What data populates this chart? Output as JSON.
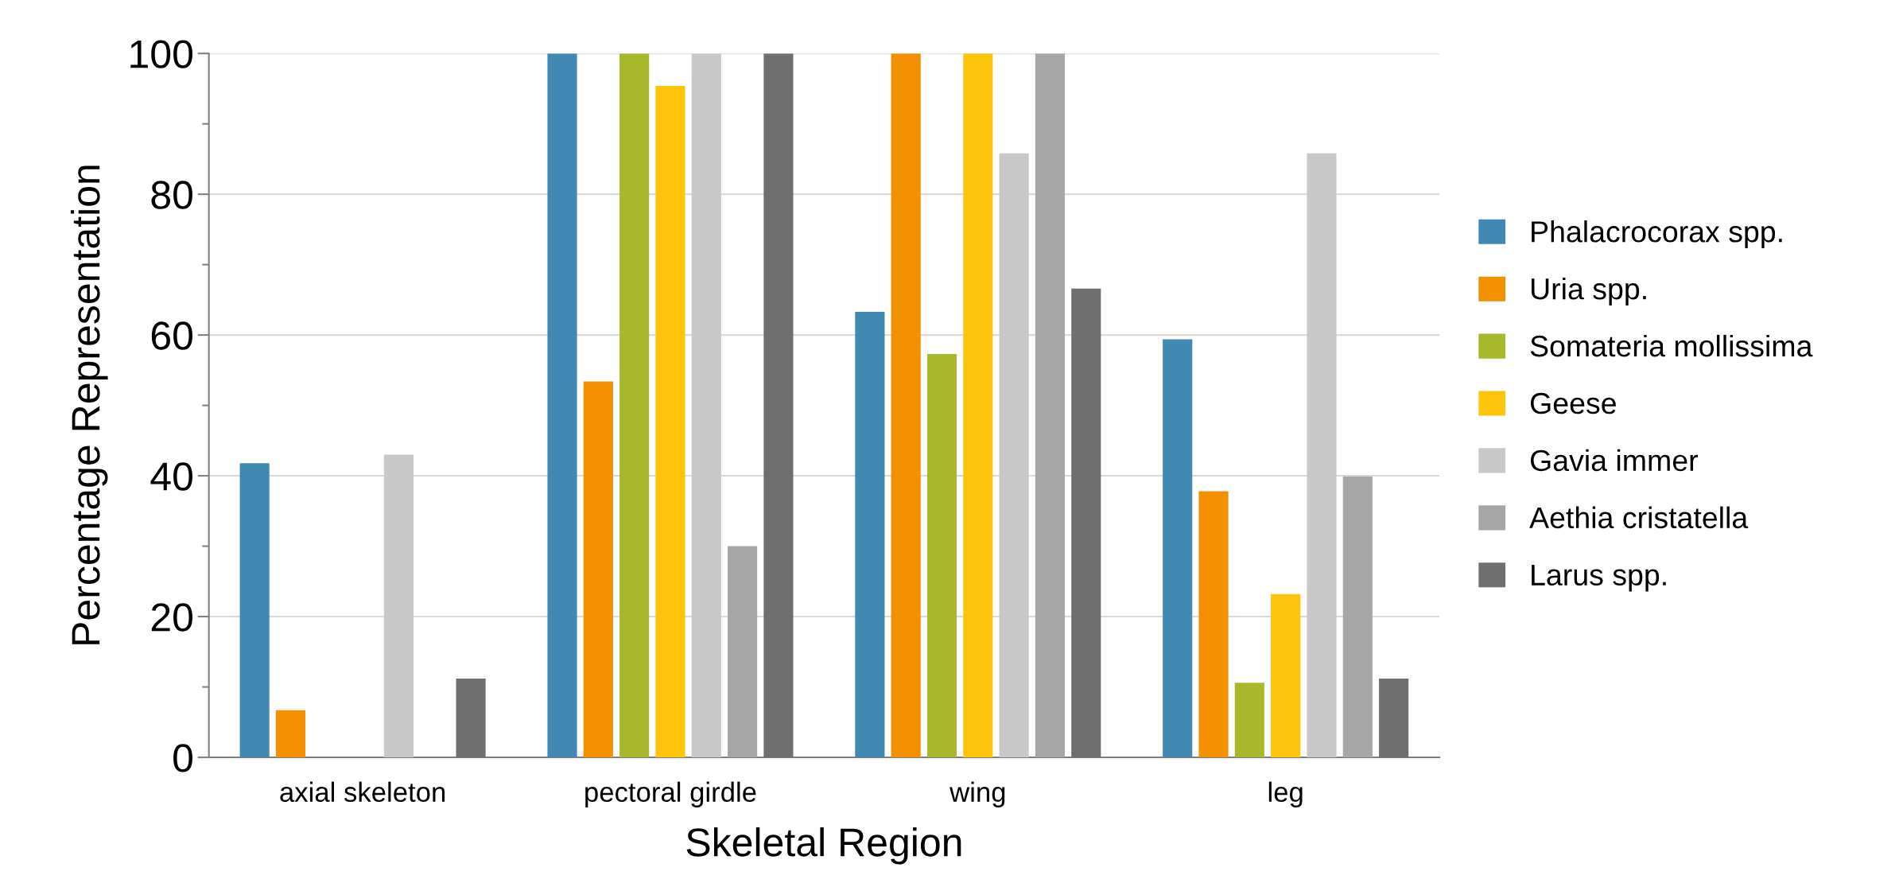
{
  "chart_data": {
    "type": "bar",
    "xlabel": "Skeletal Region",
    "ylabel": "Percentage Representation",
    "categories": [
      "axial skeleton",
      "pectoral girdle",
      "wing",
      "leg"
    ],
    "series": [
      {
        "name": "Phalacrocorax spp.",
        "color": "#4189b3",
        "values": [
          41.8,
          100,
          63.3,
          59.4
        ]
      },
      {
        "name": "Uria spp.",
        "color": "#f39000",
        "values": [
          6.7,
          53.4,
          100,
          37.8
        ]
      },
      {
        "name": "Somateria mollissima",
        "color": "#a7b92b",
        "values": [
          0,
          100,
          57.3,
          10.6
        ]
      },
      {
        "name": "Geese",
        "color": "#fec30b",
        "values": [
          0,
          95.4,
          100,
          23.2
        ]
      },
      {
        "name": "Gavia immer",
        "color": "#c8c8c8",
        "values": [
          43.0,
          100,
          85.8,
          85.8
        ]
      },
      {
        "name": "Aethia cristatella",
        "color": "#a6a6a6",
        "values": [
          0,
          30.0,
          100,
          39.9
        ]
      },
      {
        "name": "Larus spp.",
        "color": "#6f6f6f",
        "values": [
          11.2,
          100,
          66.6,
          11.2
        ]
      }
    ],
    "ylim": [
      0,
      100
    ],
    "yticks": [
      0,
      {
        "value": 10,
        "label": null
      },
      20,
      {
        "value": 30,
        "label": null
      },
      40,
      {
        "value": 50,
        "label": null
      },
      60,
      {
        "value": 70,
        "label": null
      },
      80,
      {
        "value": 90,
        "label": null
      },
      100
    ],
    "grid": "y",
    "legend": "right"
  }
}
